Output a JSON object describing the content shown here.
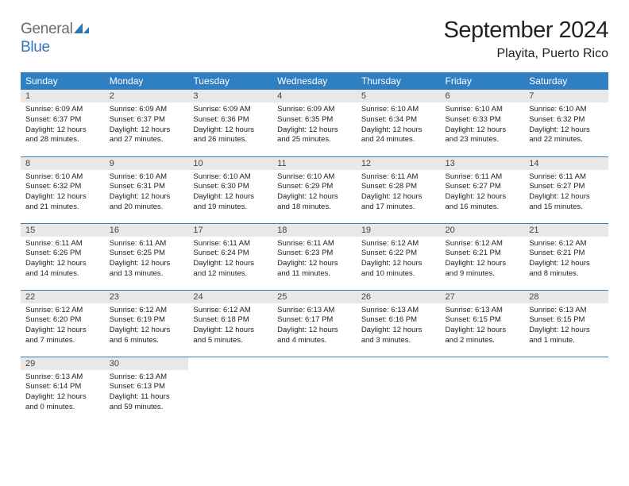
{
  "logo": {
    "line1": "General",
    "line2": "Blue"
  },
  "title": "September 2024",
  "location": "Playita, Puerto Rico",
  "colors": {
    "header_bg": "#2f7fc3",
    "header_text": "#ffffff",
    "daynum_bg": "#e8e8e8",
    "row_border": "#2f7fc3",
    "logo_gray": "#6b6b6b",
    "logo_blue": "#2f76b8"
  },
  "typography": {
    "title_fontsize": 29,
    "location_fontsize": 16,
    "weekday_fontsize": 12,
    "daynum_fontsize": 11,
    "body_fontsize": 9.5
  },
  "weekdays": [
    "Sunday",
    "Monday",
    "Tuesday",
    "Wednesday",
    "Thursday",
    "Friday",
    "Saturday"
  ],
  "days": [
    {
      "n": 1,
      "sunrise": "6:09 AM",
      "sunset": "6:37 PM",
      "daylight": "12 hours and 28 minutes."
    },
    {
      "n": 2,
      "sunrise": "6:09 AM",
      "sunset": "6:37 PM",
      "daylight": "12 hours and 27 minutes."
    },
    {
      "n": 3,
      "sunrise": "6:09 AM",
      "sunset": "6:36 PM",
      "daylight": "12 hours and 26 minutes."
    },
    {
      "n": 4,
      "sunrise": "6:09 AM",
      "sunset": "6:35 PM",
      "daylight": "12 hours and 25 minutes."
    },
    {
      "n": 5,
      "sunrise": "6:10 AM",
      "sunset": "6:34 PM",
      "daylight": "12 hours and 24 minutes."
    },
    {
      "n": 6,
      "sunrise": "6:10 AM",
      "sunset": "6:33 PM",
      "daylight": "12 hours and 23 minutes."
    },
    {
      "n": 7,
      "sunrise": "6:10 AM",
      "sunset": "6:32 PM",
      "daylight": "12 hours and 22 minutes."
    },
    {
      "n": 8,
      "sunrise": "6:10 AM",
      "sunset": "6:32 PM",
      "daylight": "12 hours and 21 minutes."
    },
    {
      "n": 9,
      "sunrise": "6:10 AM",
      "sunset": "6:31 PM",
      "daylight": "12 hours and 20 minutes."
    },
    {
      "n": 10,
      "sunrise": "6:10 AM",
      "sunset": "6:30 PM",
      "daylight": "12 hours and 19 minutes."
    },
    {
      "n": 11,
      "sunrise": "6:10 AM",
      "sunset": "6:29 PM",
      "daylight": "12 hours and 18 minutes."
    },
    {
      "n": 12,
      "sunrise": "6:11 AM",
      "sunset": "6:28 PM",
      "daylight": "12 hours and 17 minutes."
    },
    {
      "n": 13,
      "sunrise": "6:11 AM",
      "sunset": "6:27 PM",
      "daylight": "12 hours and 16 minutes."
    },
    {
      "n": 14,
      "sunrise": "6:11 AM",
      "sunset": "6:27 PM",
      "daylight": "12 hours and 15 minutes."
    },
    {
      "n": 15,
      "sunrise": "6:11 AM",
      "sunset": "6:26 PM",
      "daylight": "12 hours and 14 minutes."
    },
    {
      "n": 16,
      "sunrise": "6:11 AM",
      "sunset": "6:25 PM",
      "daylight": "12 hours and 13 minutes."
    },
    {
      "n": 17,
      "sunrise": "6:11 AM",
      "sunset": "6:24 PM",
      "daylight": "12 hours and 12 minutes."
    },
    {
      "n": 18,
      "sunrise": "6:11 AM",
      "sunset": "6:23 PM",
      "daylight": "12 hours and 11 minutes."
    },
    {
      "n": 19,
      "sunrise": "6:12 AM",
      "sunset": "6:22 PM",
      "daylight": "12 hours and 10 minutes."
    },
    {
      "n": 20,
      "sunrise": "6:12 AM",
      "sunset": "6:21 PM",
      "daylight": "12 hours and 9 minutes."
    },
    {
      "n": 21,
      "sunrise": "6:12 AM",
      "sunset": "6:21 PM",
      "daylight": "12 hours and 8 minutes."
    },
    {
      "n": 22,
      "sunrise": "6:12 AM",
      "sunset": "6:20 PM",
      "daylight": "12 hours and 7 minutes."
    },
    {
      "n": 23,
      "sunrise": "6:12 AM",
      "sunset": "6:19 PM",
      "daylight": "12 hours and 6 minutes."
    },
    {
      "n": 24,
      "sunrise": "6:12 AM",
      "sunset": "6:18 PM",
      "daylight": "12 hours and 5 minutes."
    },
    {
      "n": 25,
      "sunrise": "6:13 AM",
      "sunset": "6:17 PM",
      "daylight": "12 hours and 4 minutes."
    },
    {
      "n": 26,
      "sunrise": "6:13 AM",
      "sunset": "6:16 PM",
      "daylight": "12 hours and 3 minutes."
    },
    {
      "n": 27,
      "sunrise": "6:13 AM",
      "sunset": "6:15 PM",
      "daylight": "12 hours and 2 minutes."
    },
    {
      "n": 28,
      "sunrise": "6:13 AM",
      "sunset": "6:15 PM",
      "daylight": "12 hours and 1 minute."
    },
    {
      "n": 29,
      "sunrise": "6:13 AM",
      "sunset": "6:14 PM",
      "daylight": "12 hours and 0 minutes."
    },
    {
      "n": 30,
      "sunrise": "6:13 AM",
      "sunset": "6:13 PM",
      "daylight": "11 hours and 59 minutes."
    }
  ],
  "labels": {
    "sunrise": "Sunrise:",
    "sunset": "Sunset:",
    "daylight": "Daylight:"
  },
  "layout": {
    "first_day_col": 0,
    "num_days": 30,
    "cols": 7
  }
}
